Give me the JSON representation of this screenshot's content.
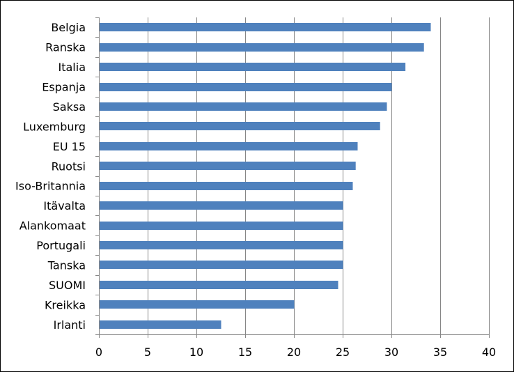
{
  "chart_data": {
    "type": "bar",
    "orientation": "horizontal",
    "title": "",
    "xlabel": "",
    "ylabel": "",
    "categories": [
      "Belgia",
      "Ranska",
      "Italia",
      "Espanja",
      "Saksa",
      "Luxemburg",
      "EU 15",
      "Ruotsi",
      "Iso-Britannia",
      "Itävalta",
      "Alankomaat",
      "Portugali",
      "Tanska",
      "SUOMI",
      "Kreikka",
      "Irlanti"
    ],
    "values": [
      34,
      33.3,
      31.4,
      30,
      29.5,
      28.8,
      26.5,
      26.3,
      26,
      25,
      25,
      25,
      25,
      24.5,
      20,
      12.5
    ],
    "xlim": [
      0,
      40
    ],
    "x_ticks": [
      "0",
      "5",
      "10",
      "15",
      "20",
      "25",
      "30",
      "35",
      "40"
    ],
    "grid": "vertical",
    "legend": "none",
    "bar_color": "#4f81bd"
  }
}
